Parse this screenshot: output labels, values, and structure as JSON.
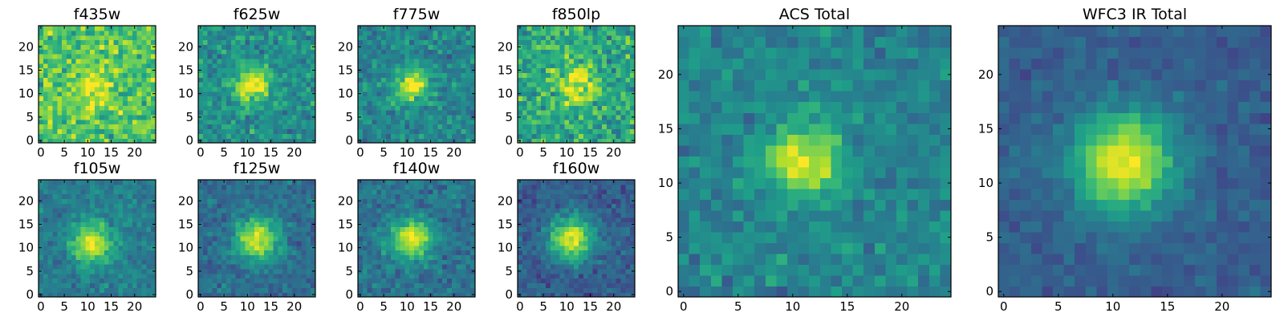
{
  "chart_data": {
    "type": "heatmap",
    "colormap": "viridis",
    "grid": false,
    "panels": [
      {
        "title": "f435w",
        "grid_size": 25,
        "xlim": [
          0,
          24
        ],
        "ylim": [
          0,
          24
        ],
        "x_ticks": [
          0,
          5,
          10,
          15,
          20
        ],
        "y_ticks": [
          0,
          5,
          10,
          15,
          20
        ],
        "source_center": [
          11,
          12
        ],
        "source_sigma": 3.0,
        "source_peak": 0.25,
        "background": 0.72,
        "noise": 0.22,
        "seed": 11
      },
      {
        "title": "f625w",
        "grid_size": 25,
        "xlim": [
          0,
          24
        ],
        "ylim": [
          0,
          24
        ],
        "x_ticks": [
          0,
          5,
          10,
          15,
          20
        ],
        "y_ticks": [
          0,
          5,
          10,
          15,
          20
        ],
        "source_center": [
          11,
          12
        ],
        "source_sigma": 2.6,
        "source_peak": 0.5,
        "background": 0.5,
        "noise": 0.17,
        "seed": 23
      },
      {
        "title": "f775w",
        "grid_size": 25,
        "xlim": [
          0,
          24
        ],
        "ylim": [
          0,
          24
        ],
        "x_ticks": [
          0,
          5,
          10,
          15,
          20
        ],
        "y_ticks": [
          0,
          5,
          10,
          15,
          20
        ],
        "source_center": [
          11,
          12
        ],
        "source_sigma": 2.5,
        "source_peak": 0.5,
        "background": 0.46,
        "noise": 0.16,
        "seed": 37
      },
      {
        "title": "f850lp",
        "grid_size": 25,
        "xlim": [
          0,
          24
        ],
        "ylim": [
          0,
          24
        ],
        "x_ticks": [
          0,
          5,
          10,
          15,
          20
        ],
        "y_ticks": [
          0,
          5,
          10,
          15,
          20
        ],
        "source_center": [
          12,
          12
        ],
        "source_sigma": 2.8,
        "source_peak": 0.4,
        "background": 0.6,
        "noise": 0.22,
        "seed": 41
      },
      {
        "title": "f105w",
        "grid_size": 25,
        "xlim": [
          0,
          24
        ],
        "ylim": [
          0,
          24
        ],
        "x_ticks": [
          0,
          5,
          10,
          15,
          20
        ],
        "y_ticks": [
          0,
          5,
          10,
          15,
          20
        ],
        "source_center": [
          11,
          11
        ],
        "source_sigma": 3.0,
        "source_peak": 0.55,
        "background": 0.42,
        "noise": 0.12,
        "seed": 53
      },
      {
        "title": "f125w",
        "grid_size": 25,
        "xlim": [
          0,
          24
        ],
        "ylim": [
          0,
          24
        ],
        "x_ticks": [
          0,
          5,
          10,
          15,
          20
        ],
        "y_ticks": [
          0,
          5,
          10,
          15,
          20
        ],
        "source_center": [
          12,
          12
        ],
        "source_sigma": 3.2,
        "source_peak": 0.6,
        "background": 0.36,
        "noise": 0.12,
        "seed": 67
      },
      {
        "title": "f140w",
        "grid_size": 25,
        "xlim": [
          0,
          24
        ],
        "ylim": [
          0,
          24
        ],
        "x_ticks": [
          0,
          5,
          10,
          15,
          20
        ],
        "y_ticks": [
          0,
          5,
          10,
          15,
          20
        ],
        "source_center": [
          11,
          12
        ],
        "source_sigma": 3.0,
        "source_peak": 0.58,
        "background": 0.38,
        "noise": 0.13,
        "seed": 71
      },
      {
        "title": "f160w",
        "grid_size": 25,
        "xlim": [
          0,
          24
        ],
        "ylim": [
          0,
          24
        ],
        "x_ticks": [
          0,
          5,
          10,
          15,
          20
        ],
        "y_ticks": [
          0,
          5,
          10,
          15,
          20
        ],
        "source_center": [
          11,
          12
        ],
        "source_sigma": 3.3,
        "source_peak": 0.65,
        "background": 0.3,
        "noise": 0.12,
        "seed": 83
      },
      {
        "title": "ACS Total",
        "grid_size": 25,
        "xlim": [
          0,
          24
        ],
        "ylim": [
          0,
          24
        ],
        "x_ticks": [
          0,
          5,
          10,
          15,
          20
        ],
        "y_ticks": [
          0,
          5,
          10,
          15,
          20
        ],
        "source_center": [
          11,
          12
        ],
        "source_sigma": 2.2,
        "source_peak": 0.55,
        "background": 0.45,
        "noise": 0.13,
        "seed": 97
      },
      {
        "title": "WFC3 IR Total",
        "grid_size": 25,
        "xlim": [
          0,
          24
        ],
        "ylim": [
          0,
          24
        ],
        "x_ticks": [
          0,
          5,
          10,
          15,
          20
        ],
        "y_ticks": [
          0,
          5,
          10,
          15,
          20
        ],
        "source_center": [
          11,
          12
        ],
        "source_sigma": 3.3,
        "source_peak": 0.68,
        "background": 0.3,
        "noise": 0.08,
        "seed": 101
      }
    ]
  }
}
